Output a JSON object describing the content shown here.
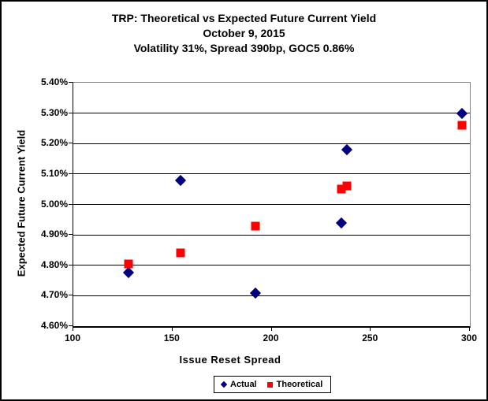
{
  "chart_data": {
    "type": "scatter",
    "title": "TRP: Theoretical vs Expected Future Current Yield",
    "subtitle1": "October 9, 2015",
    "subtitle2": "Volatility 31%, Spread 390bp, GOC5 0.86%",
    "xlabel": "Issue Reset Spread",
    "ylabel": "Expected Future Current Yield",
    "xlim": [
      100,
      300
    ],
    "ylim": [
      4.6,
      5.4
    ],
    "x_ticks": [
      100,
      150,
      200,
      250,
      300
    ],
    "y_ticks": [
      5.4,
      5.3,
      5.2,
      5.1,
      5.0,
      4.9,
      4.8,
      4.7,
      4.6
    ],
    "y_tick_format": "percent2",
    "grid": "horizontal",
    "legend_position": "bottom",
    "x": [
      128,
      154,
      192,
      235,
      238,
      296
    ],
    "series": [
      {
        "name": "Actual",
        "marker": "diamond",
        "color": "#000080",
        "values": [
          4.775,
          5.08,
          4.71,
          4.94,
          5.18,
          5.3
        ]
      },
      {
        "name": "Theoretical",
        "marker": "square",
        "color": "#FF0000",
        "values": [
          4.805,
          4.84,
          4.93,
          5.05,
          5.06,
          5.26
        ]
      }
    ]
  }
}
